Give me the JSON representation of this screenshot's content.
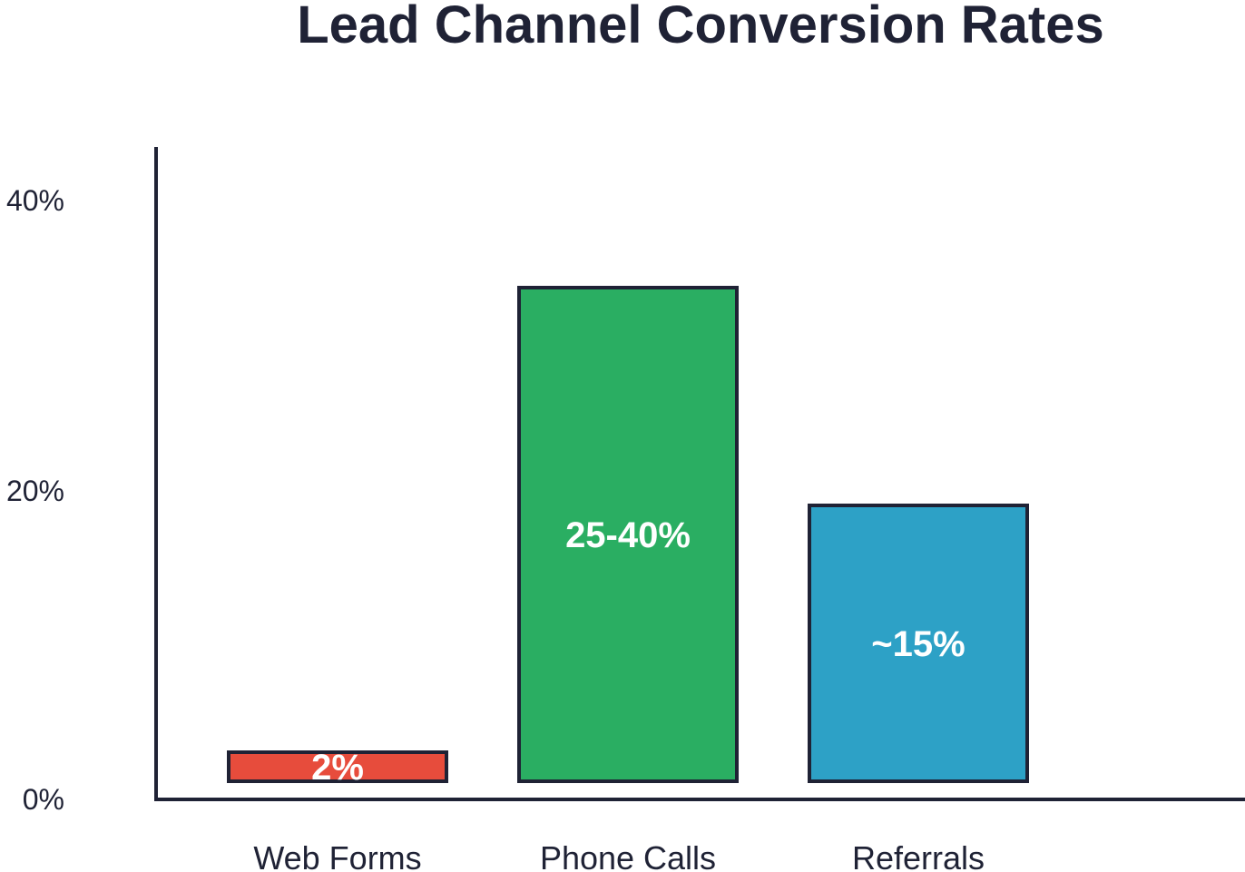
{
  "chart_data": {
    "type": "bar",
    "title": "Lead Channel Conversion Rates",
    "xlabel": "",
    "ylabel": "",
    "categories": [
      "Web Forms",
      "Phone Calls",
      "Referrals"
    ],
    "values": [
      2,
      34,
      19
    ],
    "data_labels": [
      "2%",
      "25-40%",
      "~15%"
    ],
    "y_ticks": [
      0,
      20,
      40
    ],
    "y_tick_labels": [
      "0%",
      "20%",
      "40%"
    ],
    "ylim": [
      -1,
      45
    ],
    "colors": [
      "#e74c3c",
      "#2aae62",
      "#2da1c6"
    ],
    "bar_edge_color": "#1f2235",
    "axis_color": "#1f2235",
    "text_color": "#1f2235",
    "grid": false,
    "legend": "none"
  }
}
